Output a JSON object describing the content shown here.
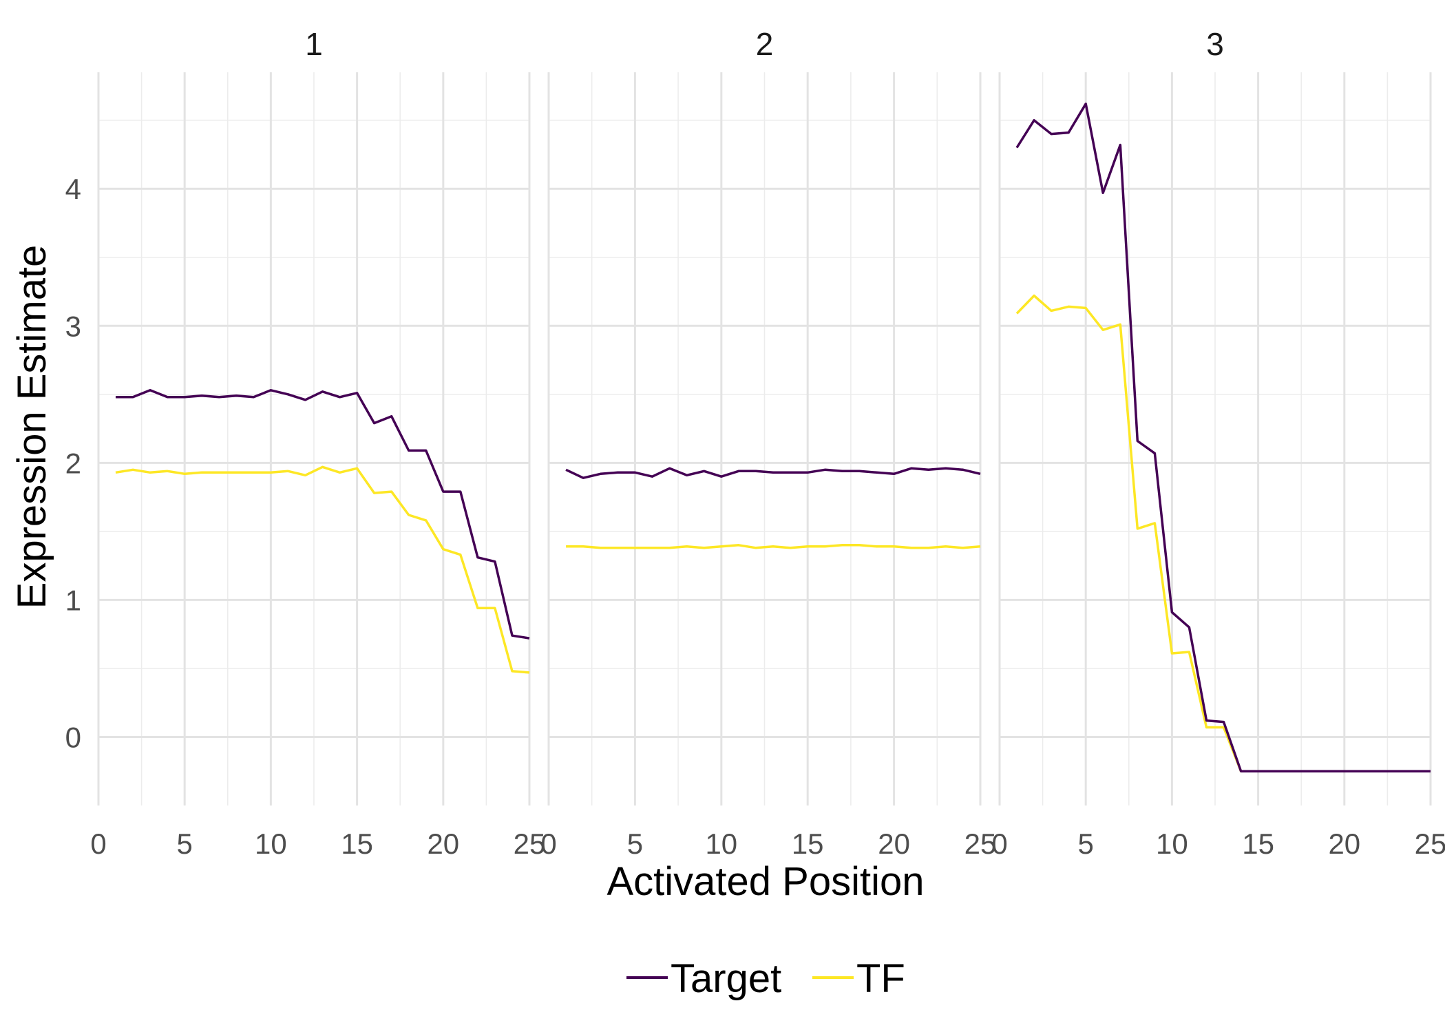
{
  "chart_data": {
    "type": "line",
    "title": "",
    "xlabel": "Activated Position",
    "ylabel": "Expression Estimate",
    "xlim": [
      0,
      25
    ],
    "ylim": [
      -0.5,
      4.85
    ],
    "x_ticks": [
      0,
      5,
      10,
      15,
      20,
      25
    ],
    "y_ticks": [
      0,
      1,
      2,
      3,
      4
    ],
    "x_minor": [
      2.5,
      7.5,
      12.5,
      17.5,
      22.5
    ],
    "y_minor": [
      0.5,
      1.5,
      2.5,
      3.5,
      4.5
    ],
    "grid": true,
    "legend_position": "bottom",
    "colors": {
      "Target": "#440154",
      "TF": "#FDE725"
    },
    "legend": [
      "Target",
      "TF"
    ],
    "facets": [
      {
        "label": "1",
        "x": [
          1,
          2,
          3,
          4,
          5,
          6,
          7,
          8,
          9,
          10,
          11,
          12,
          13,
          14,
          15,
          16,
          17,
          18,
          19,
          20,
          21,
          22,
          23,
          24,
          25
        ],
        "series": [
          {
            "name": "Target",
            "values": [
              2.48,
              2.48,
              2.53,
              2.48,
              2.48,
              2.49,
              2.48,
              2.49,
              2.48,
              2.53,
              2.5,
              2.46,
              2.52,
              2.48,
              2.51,
              2.29,
              2.34,
              2.09,
              2.09,
              1.79,
              1.79,
              1.31,
              1.28,
              0.74,
              0.72
            ]
          },
          {
            "name": "TF",
            "values": [
              1.93,
              1.95,
              1.93,
              1.94,
              1.92,
              1.93,
              1.93,
              1.93,
              1.93,
              1.93,
              1.94,
              1.91,
              1.97,
              1.93,
              1.96,
              1.78,
              1.79,
              1.62,
              1.58,
              1.37,
              1.33,
              0.94,
              0.94,
              0.48,
              0.47
            ]
          }
        ]
      },
      {
        "label": "2",
        "x": [
          1,
          2,
          3,
          4,
          5,
          6,
          7,
          8,
          9,
          10,
          11,
          12,
          13,
          14,
          15,
          16,
          17,
          18,
          19,
          20,
          21,
          22,
          23,
          24,
          25
        ],
        "series": [
          {
            "name": "Target",
            "values": [
              1.95,
              1.89,
              1.92,
              1.93,
              1.93,
              1.9,
              1.96,
              1.91,
              1.94,
              1.9,
              1.94,
              1.94,
              1.93,
              1.93,
              1.93,
              1.95,
              1.94,
              1.94,
              1.93,
              1.92,
              1.96,
              1.95,
              1.96,
              1.95,
              1.92
            ]
          },
          {
            "name": "TF",
            "values": [
              1.39,
              1.39,
              1.38,
              1.38,
              1.38,
              1.38,
              1.38,
              1.39,
              1.38,
              1.39,
              1.4,
              1.38,
              1.39,
              1.38,
              1.39,
              1.39,
              1.4,
              1.4,
              1.39,
              1.39,
              1.38,
              1.38,
              1.39,
              1.38,
              1.39
            ]
          }
        ]
      },
      {
        "label": "3",
        "x": [
          1,
          2,
          3,
          4,
          5,
          6,
          7,
          8,
          9,
          10,
          11,
          12,
          13,
          14,
          15,
          16,
          17,
          18,
          19,
          20,
          21,
          22,
          23,
          24,
          25
        ],
        "series": [
          {
            "name": "Target",
            "values": [
              4.3,
              4.5,
              4.4,
              4.41,
              4.62,
              3.97,
              4.32,
              2.16,
              2.07,
              0.91,
              0.8,
              0.12,
              0.11,
              -0.25,
              -0.25,
              -0.25,
              -0.25,
              -0.25,
              -0.25,
              -0.25,
              -0.25,
              -0.25,
              -0.25,
              -0.25,
              -0.25
            ]
          },
          {
            "name": "TF",
            "values": [
              3.09,
              3.22,
              3.11,
              3.14,
              3.13,
              2.97,
              3.01,
              1.52,
              1.56,
              0.61,
              0.62,
              0.07,
              0.07,
              -0.25,
              -0.25,
              -0.25,
              -0.25,
              -0.25,
              -0.25,
              -0.25,
              -0.25,
              -0.25,
              -0.25,
              -0.25,
              -0.25
            ]
          }
        ]
      }
    ]
  }
}
